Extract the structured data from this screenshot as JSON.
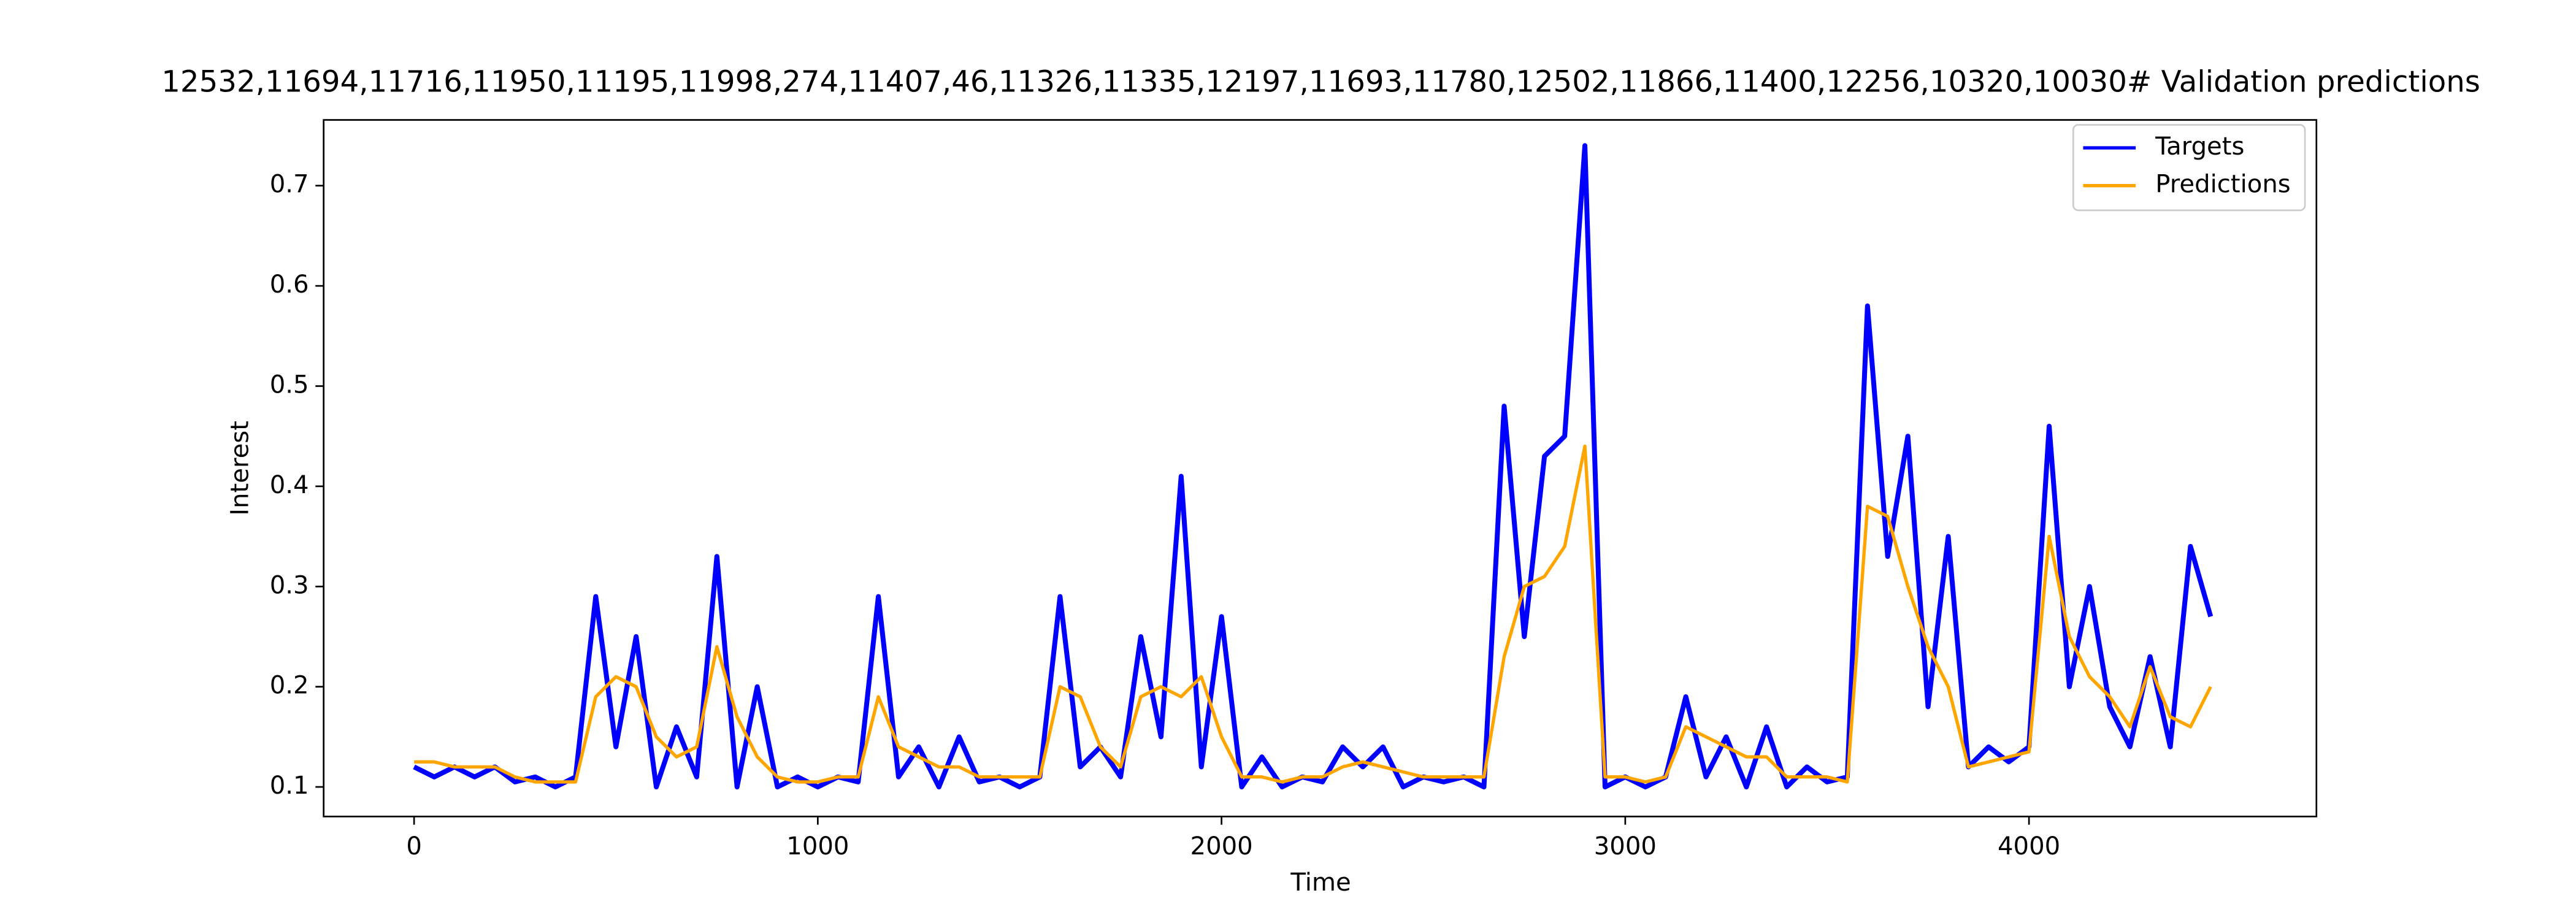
{
  "chart_data": {
    "type": "line",
    "title": "12532,11694,11716,11950,11195,11998,274,11407,46,11326,11335,12197,11693,11780,12502,11866,11400,12256,10320,10030# Validation predictions",
    "xlabel": "Time",
    "ylabel": "Interest",
    "x": [
      0,
      50,
      100,
      150,
      200,
      250,
      300,
      350,
      400,
      450,
      500,
      550,
      600,
      650,
      700,
      750,
      800,
      850,
      900,
      950,
      1000,
      1050,
      1100,
      1150,
      1200,
      1250,
      1300,
      1350,
      1400,
      1450,
      1500,
      1550,
      1600,
      1650,
      1700,
      1750,
      1800,
      1850,
      1900,
      1950,
      2000,
      2050,
      2100,
      2150,
      2200,
      2250,
      2300,
      2350,
      2400,
      2450,
      2500,
      2550,
      2600,
      2650,
      2700,
      2750,
      2800,
      2850,
      2900,
      2950,
      3000,
      3050,
      3100,
      3150,
      3200,
      3250,
      3300,
      3350,
      3400,
      3450,
      3500,
      3550,
      3600,
      3650,
      3700,
      3750,
      3800,
      3850,
      3900,
      3950,
      4000,
      4050,
      4100,
      4150,
      4200,
      4250,
      4300,
      4350,
      4400,
      4450
    ],
    "series": [
      {
        "name": "Targets",
        "color": "#0000ff",
        "values": [
          0.12,
          0.11,
          0.12,
          0.11,
          0.12,
          0.105,
          0.11,
          0.1,
          0.11,
          0.29,
          0.14,
          0.25,
          0.1,
          0.16,
          0.11,
          0.33,
          0.1,
          0.2,
          0.1,
          0.11,
          0.1,
          0.11,
          0.105,
          0.29,
          0.11,
          0.14,
          0.1,
          0.15,
          0.105,
          0.11,
          0.1,
          0.11,
          0.29,
          0.12,
          0.14,
          0.11,
          0.25,
          0.15,
          0.41,
          0.12,
          0.27,
          0.1,
          0.13,
          0.1,
          0.11,
          0.105,
          0.14,
          0.12,
          0.14,
          0.1,
          0.11,
          0.105,
          0.11,
          0.1,
          0.48,
          0.25,
          0.43,
          0.45,
          0.74,
          0.1,
          0.11,
          0.1,
          0.11,
          0.19,
          0.11,
          0.15,
          0.1,
          0.16,
          0.1,
          0.12,
          0.105,
          0.11,
          0.58,
          0.33,
          0.45,
          0.18,
          0.35,
          0.12,
          0.14,
          0.125,
          0.14,
          0.46,
          0.2,
          0.3,
          0.18,
          0.14,
          0.23,
          0.14,
          0.34,
          0.27
        ]
      },
      {
        "name": "Predictions",
        "color": "#ffa500",
        "values": [
          0.125,
          0.125,
          0.12,
          0.12,
          0.12,
          0.11,
          0.105,
          0.105,
          0.105,
          0.19,
          0.21,
          0.2,
          0.15,
          0.13,
          0.14,
          0.24,
          0.17,
          0.13,
          0.11,
          0.105,
          0.105,
          0.11,
          0.11,
          0.19,
          0.14,
          0.13,
          0.12,
          0.12,
          0.11,
          0.11,
          0.11,
          0.11,
          0.2,
          0.19,
          0.14,
          0.12,
          0.19,
          0.2,
          0.19,
          0.21,
          0.15,
          0.11,
          0.11,
          0.105,
          0.11,
          0.11,
          0.12,
          0.125,
          0.12,
          0.115,
          0.11,
          0.11,
          0.11,
          0.11,
          0.23,
          0.3,
          0.31,
          0.34,
          0.44,
          0.11,
          0.11,
          0.105,
          0.11,
          0.16,
          0.15,
          0.14,
          0.13,
          0.13,
          0.11,
          0.11,
          0.11,
          0.105,
          0.38,
          0.37,
          0.3,
          0.24,
          0.2,
          0.12,
          0.125,
          0.13,
          0.135,
          0.35,
          0.25,
          0.21,
          0.19,
          0.16,
          0.22,
          0.17,
          0.16,
          0.2
        ]
      }
    ],
    "xlim": [
      -224,
      4712
    ],
    "xticks": [
      0,
      1000,
      2000,
      3000,
      4000
    ],
    "ylim": [
      0.0705,
      0.7656
    ],
    "yticks": [
      0.1,
      0.2,
      0.3,
      0.4,
      0.5,
      0.6,
      0.7
    ],
    "legend": "upper right",
    "grid": false
  }
}
